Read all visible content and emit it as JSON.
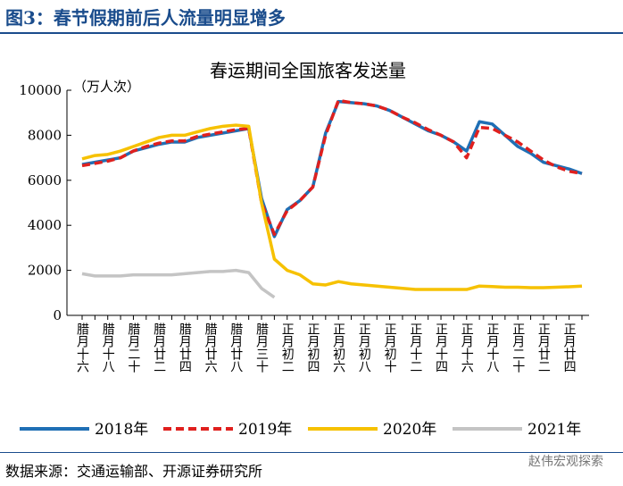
{
  "header": {
    "title": "图3：春节假期前后人流量明显增多"
  },
  "chart_data": {
    "type": "line",
    "title": "春运期间全国旅客发送量",
    "y_label": "（万人次）",
    "categories": [
      "腊月十六",
      null,
      "腊月十八",
      null,
      "腊月二十",
      null,
      "腊月廿二",
      null,
      "腊月廿四",
      null,
      "腊月廿六",
      null,
      "腊月廿八",
      null,
      "腊月三十",
      null,
      "正月初二",
      null,
      "正月初四",
      null,
      "正月初六",
      null,
      "正月初八",
      null,
      "正月初十",
      null,
      "正月十二",
      null,
      "正月十四",
      null,
      "正月十六",
      null,
      "正月十八",
      null,
      "正月二十",
      null,
      "正月廿二",
      null,
      "正月廿四",
      null
    ],
    "ylim": [
      0,
      10000
    ],
    "yticks": [
      0,
      2000,
      4000,
      6000,
      8000,
      10000
    ],
    "series": [
      {
        "name": "2018年",
        "color": "#1f6fb5",
        "dash": false,
        "values": [
          6700,
          6800,
          6900,
          7000,
          7300,
          7450,
          7600,
          7700,
          7700,
          7900,
          8000,
          8100,
          8200,
          8300,
          5200,
          3500,
          4700,
          5100,
          5700,
          8100,
          9500,
          9450,
          9400,
          9300,
          9100,
          8800,
          8500,
          8200,
          8000,
          7700,
          7300,
          8600,
          8500,
          8000,
          7500,
          7200,
          6800,
          6650,
          6500,
          6300
        ]
      },
      {
        "name": "2019年",
        "color": "#e0201e",
        "dash": true,
        "values": [
          6650,
          6750,
          6850,
          7000,
          7300,
          7500,
          7650,
          7750,
          7750,
          7950,
          8050,
          8150,
          8250,
          8300,
          5000,
          3600,
          4650,
          5100,
          5700,
          8000,
          9550,
          9450,
          9400,
          9300,
          9100,
          8800,
          8550,
          8250,
          8000,
          7700,
          7000,
          8350,
          8300,
          8000,
          7700,
          7300,
          6900,
          6600,
          6400,
          6300
        ]
      },
      {
        "name": "2020年",
        "color": "#f6c100",
        "dash": false,
        "values": [
          6950,
          7100,
          7150,
          7300,
          7500,
          7700,
          7900,
          8000,
          8000,
          8150,
          8300,
          8400,
          8450,
          8400,
          5000,
          2500,
          2000,
          1800,
          1400,
          1350,
          1500,
          1400,
          1350,
          1300,
          1250,
          1200,
          1150,
          1150,
          1150,
          1150,
          1150,
          1300,
          1280,
          1250,
          1250,
          1230,
          1230,
          1250,
          1270,
          1300
        ]
      },
      {
        "name": "2021年",
        "color": "#c4c4c4",
        "dash": false,
        "values": [
          1850,
          1750,
          1750,
          1750,
          1800,
          1800,
          1800,
          1800,
          1850,
          1900,
          1950,
          1950,
          2000,
          1900,
          1200,
          800,
          null,
          null,
          null,
          null,
          null,
          null,
          null,
          null,
          null,
          null,
          null,
          null,
          null,
          null,
          null,
          null,
          null,
          null,
          null,
          null,
          null,
          null,
          null,
          null
        ]
      }
    ]
  },
  "footer": {
    "source": "数据来源：交通运输部、开源证券研究所",
    "watermark": "赵伟宏观探索"
  }
}
